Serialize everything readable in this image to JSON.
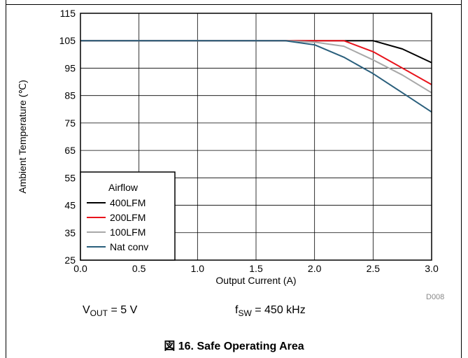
{
  "chart_data": {
    "type": "line",
    "title": "",
    "xlabel": "Output Current (A)",
    "ylabel": "Ambient Temperature (℃)",
    "xlim": [
      0,
      3
    ],
    "ylim": [
      25,
      115
    ],
    "xticks": [
      "0.0",
      "0.5",
      "1.0",
      "1.5",
      "2.0",
      "2.5",
      "3.0"
    ],
    "yticks": [
      "25",
      "35",
      "45",
      "55",
      "65",
      "75",
      "85",
      "95",
      "105",
      "115"
    ],
    "grid": true,
    "legend": {
      "title": "Airflow",
      "placement": "bottom-left"
    },
    "series": [
      {
        "name": "400LFM",
        "color": "#000000",
        "x": [
          0,
          1.75,
          2.0,
          2.25,
          2.5,
          2.75,
          3.0
        ],
        "y": [
          105,
          105,
          105,
          105,
          105,
          102,
          97
        ]
      },
      {
        "name": "200LFM",
        "color": "#e8141c",
        "x": [
          0,
          1.75,
          2.0,
          2.25,
          2.5,
          2.75,
          3.0
        ],
        "y": [
          105,
          105,
          105,
          105,
          101,
          95,
          89
        ]
      },
      {
        "name": "100LFM",
        "color": "#a8a8a8",
        "x": [
          0,
          1.75,
          2.0,
          2.25,
          2.5,
          2.75,
          3.0
        ],
        "y": [
          105,
          105,
          104.5,
          103,
          98,
          92.5,
          86
        ]
      },
      {
        "name": "Nat conv",
        "color": "#2a5f7c",
        "x": [
          0,
          1.75,
          2.0,
          2.25,
          2.5,
          2.75,
          3.0
        ],
        "y": [
          105,
          105,
          103.5,
          99,
          93,
          86,
          79
        ]
      }
    ]
  },
  "captions": {
    "vout_main": "V",
    "vout_sub": "OUT",
    "vout_value": " = 5 V",
    "fsw_main": "f",
    "fsw_sub": "SW",
    "fsw_value": " = 450 kHz",
    "code": "D008",
    "figure": "図 16. Safe Operating Area"
  }
}
